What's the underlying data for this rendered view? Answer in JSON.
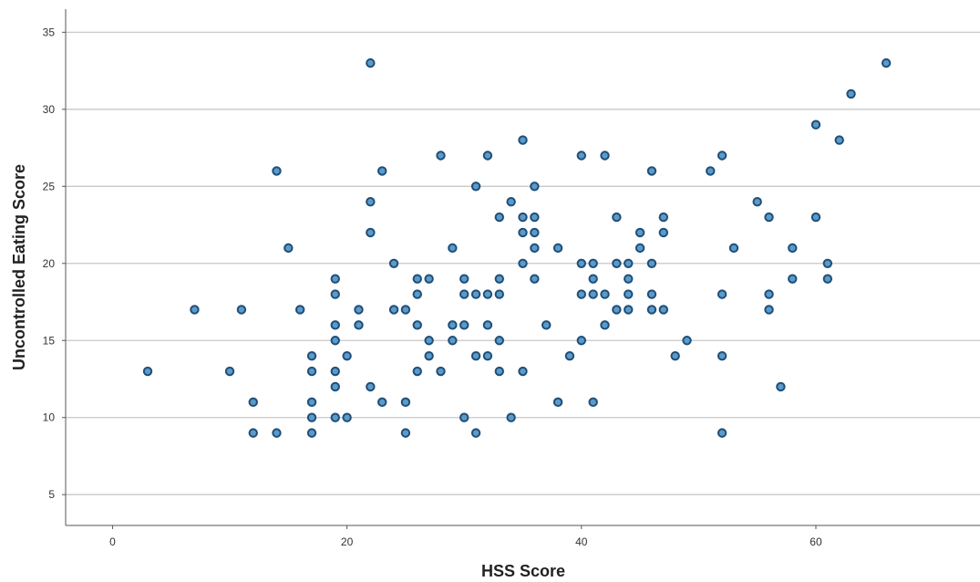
{
  "chart_data": {
    "type": "scatter",
    "title": "",
    "xlabel": "HSS Score",
    "ylabel": "Uncontrolled Eating Score",
    "xlim": [
      -4,
      74
    ],
    "ylim": [
      3,
      36.5
    ],
    "xticks": [
      0,
      20,
      40,
      60
    ],
    "yticks": [
      5,
      10,
      15,
      20,
      25,
      30,
      35
    ],
    "grid": "horizontal",
    "marker_fill": "#5b9bc9",
    "marker_edge": "#1f4e79",
    "series": [
      {
        "points": [
          [
            3,
            13
          ],
          [
            7,
            17
          ],
          [
            10,
            13
          ],
          [
            11,
            17
          ],
          [
            12,
            11
          ],
          [
            12,
            9
          ],
          [
            14,
            26
          ],
          [
            14,
            9
          ],
          [
            15,
            21
          ],
          [
            16,
            17
          ],
          [
            17,
            14
          ],
          [
            17,
            13
          ],
          [
            17,
            11
          ],
          [
            17,
            10
          ],
          [
            17,
            9
          ],
          [
            19,
            19
          ],
          [
            19,
            18
          ],
          [
            19,
            16
          ],
          [
            19,
            15
          ],
          [
            19,
            13
          ],
          [
            19,
            12
          ],
          [
            19,
            10
          ],
          [
            20,
            14
          ],
          [
            20,
            10
          ],
          [
            21,
            17
          ],
          [
            21,
            16
          ],
          [
            22,
            33
          ],
          [
            22,
            24
          ],
          [
            22,
            22
          ],
          [
            22,
            12
          ],
          [
            23,
            26
          ],
          [
            23,
            11
          ],
          [
            24,
            20
          ],
          [
            24,
            17
          ],
          [
            25,
            17
          ],
          [
            25,
            11
          ],
          [
            25,
            9
          ],
          [
            26,
            19
          ],
          [
            26,
            18
          ],
          [
            26,
            16
          ],
          [
            26,
            13
          ],
          [
            27,
            19
          ],
          [
            27,
            15
          ],
          [
            27,
            14
          ],
          [
            28,
            27
          ],
          [
            28,
            13
          ],
          [
            29,
            21
          ],
          [
            29,
            16
          ],
          [
            29,
            15
          ],
          [
            30,
            19
          ],
          [
            30,
            18
          ],
          [
            30,
            16
          ],
          [
            30,
            10
          ],
          [
            31,
            25
          ],
          [
            31,
            18
          ],
          [
            31,
            14
          ],
          [
            31,
            9
          ],
          [
            32,
            27
          ],
          [
            32,
            18
          ],
          [
            32,
            16
          ],
          [
            32,
            14
          ],
          [
            33,
            23
          ],
          [
            33,
            19
          ],
          [
            33,
            18
          ],
          [
            33,
            15
          ],
          [
            33,
            13
          ],
          [
            34,
            24
          ],
          [
            34,
            10
          ],
          [
            35,
            28
          ],
          [
            35,
            23
          ],
          [
            35,
            22
          ],
          [
            35,
            20
          ],
          [
            35,
            13
          ],
          [
            36,
            25
          ],
          [
            36,
            23
          ],
          [
            36,
            22
          ],
          [
            36,
            21
          ],
          [
            36,
            19
          ],
          [
            37,
            16
          ],
          [
            38,
            21
          ],
          [
            38,
            11
          ],
          [
            39,
            14
          ],
          [
            40,
            27
          ],
          [
            40,
            20
          ],
          [
            40,
            18
          ],
          [
            40,
            15
          ],
          [
            41,
            20
          ],
          [
            41,
            19
          ],
          [
            41,
            18
          ],
          [
            41,
            11
          ],
          [
            42,
            27
          ],
          [
            42,
            18
          ],
          [
            42,
            16
          ],
          [
            43,
            23
          ],
          [
            43,
            20
          ],
          [
            43,
            17
          ],
          [
            44,
            20
          ],
          [
            44,
            19
          ],
          [
            44,
            18
          ],
          [
            44,
            17
          ],
          [
            45,
            22
          ],
          [
            45,
            21
          ],
          [
            46,
            26
          ],
          [
            46,
            20
          ],
          [
            46,
            18
          ],
          [
            46,
            17
          ],
          [
            47,
            23
          ],
          [
            47,
            22
          ],
          [
            47,
            17
          ],
          [
            48,
            14
          ],
          [
            49,
            15
          ],
          [
            51,
            26
          ],
          [
            52,
            27
          ],
          [
            52,
            18
          ],
          [
            52,
            14
          ],
          [
            52,
            9
          ],
          [
            53,
            21
          ],
          [
            55,
            24
          ],
          [
            56,
            23
          ],
          [
            56,
            18
          ],
          [
            56,
            17
          ],
          [
            57,
            12
          ],
          [
            58,
            21
          ],
          [
            58,
            19
          ],
          [
            60,
            29
          ],
          [
            60,
            23
          ],
          [
            61,
            20
          ],
          [
            61,
            19
          ],
          [
            62,
            28
          ],
          [
            63,
            31
          ],
          [
            66,
            33
          ]
        ]
      }
    ]
  }
}
